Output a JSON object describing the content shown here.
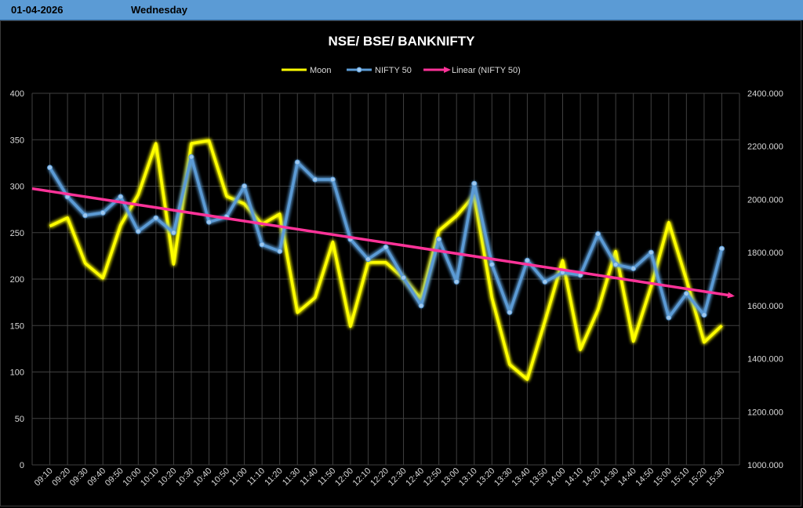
{
  "header": {
    "date": "01-04-2026",
    "day": "Wednesday"
  },
  "chart_data": {
    "type": "line",
    "title": "NSE/ BSE/ BANKNIFTY",
    "legend_position": "top-center",
    "grid": true,
    "x": [
      "09:10",
      "09:20",
      "09:30",
      "09:40",
      "09:50",
      "10:00",
      "10:10",
      "10:20",
      "10:30",
      "10:40",
      "10:50",
      "11:00",
      "11:10",
      "11:20",
      "11:30",
      "11:40",
      "11:50",
      "12:00",
      "12:10",
      "12:20",
      "12:30",
      "12:40",
      "12:50",
      "13:00",
      "13:10",
      "13:20",
      "13:30",
      "13:40",
      "13:50",
      "14:00",
      "14:10",
      "14:20",
      "14:30",
      "14:40",
      "14:50",
      "15:00",
      "15:10",
      "15:20",
      "15:30"
    ],
    "y_left": {
      "ylim": [
        0,
        400
      ],
      "ticks": [
        "400",
        "350",
        "300",
        "250",
        "200",
        "150",
        "100",
        "50",
        "0"
      ]
    },
    "y_right": {
      "ylim": [
        1000,
        2400
      ],
      "ticks": [
        "2400.000",
        "2200.000",
        "2000.000",
        "1800.000",
        "1600.000",
        "1400.000",
        "1200.000",
        "1000.000"
      ]
    },
    "series": [
      {
        "name": "Moon",
        "axis": "left",
        "color": "#ffff00",
        "values": [
          257,
          266,
          217,
          201,
          258,
          291,
          346,
          216,
          346,
          349,
          289,
          281,
          259,
          270,
          164,
          180,
          240,
          149,
          218,
          218,
          201,
          178,
          252,
          268,
          290,
          180,
          108,
          92,
          155,
          220,
          124,
          167,
          230,
          133,
          192,
          261,
          199,
          132,
          150
        ]
      },
      {
        "name": "NIFTY 50",
        "axis": "right",
        "color": "#5b9bd5",
        "values": [
          2120,
          2010,
          1940,
          1950,
          2010,
          1880,
          1930,
          1875,
          2160,
          1915,
          1935,
          2050,
          1830,
          1805,
          2140,
          2075,
          2075,
          1850,
          1775,
          1820,
          1705,
          1600,
          1850,
          1690,
          2060,
          1755,
          1575,
          1770,
          1690,
          1725,
          1715,
          1870,
          1755,
          1740,
          1800,
          1555,
          1645,
          1565,
          1815
        ]
      }
    ],
    "trendline": {
      "name": "Linear (NIFTY 50)",
      "of_series": "NIFTY 50",
      "color": "#ff3399",
      "start": 2041,
      "end": 1637
    }
  }
}
